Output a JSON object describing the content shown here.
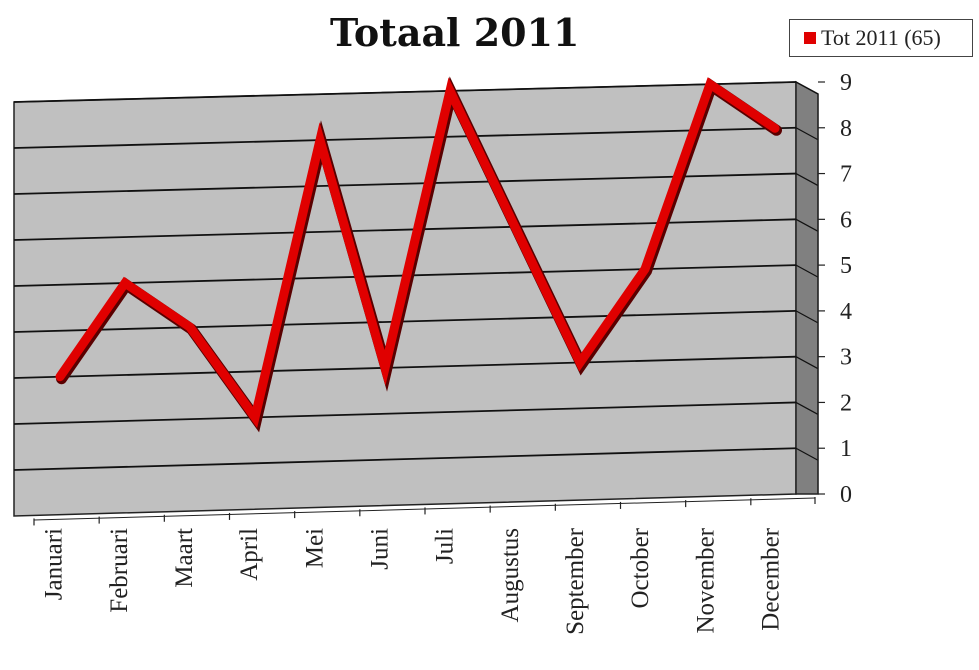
{
  "chart_data": {
    "type": "line",
    "title": "Totaal 2011",
    "categories": [
      "Januari",
      "Februari",
      "Maart",
      "April",
      "Mei",
      "Juni",
      "Juli",
      "Augustus",
      "September",
      "October",
      "November",
      "December"
    ],
    "series": [
      {
        "name": "Tot 2011 (65)",
        "values": [
          3,
          5,
          4,
          2,
          8,
          3,
          9,
          6,
          3,
          5,
          9,
          8
        ],
        "color": "#e00000"
      }
    ],
    "ylim": [
      0,
      9
    ],
    "yticks": [
      "0",
      "1",
      "2",
      "3",
      "4",
      "5",
      "6",
      "7",
      "8",
      "9"
    ],
    "grid": true,
    "three_d": true,
    "legend_position": "top-right",
    "colors": {
      "wall": "#c0c0c0",
      "side_wall": "#7f7f7f",
      "line": "#e00000"
    }
  }
}
